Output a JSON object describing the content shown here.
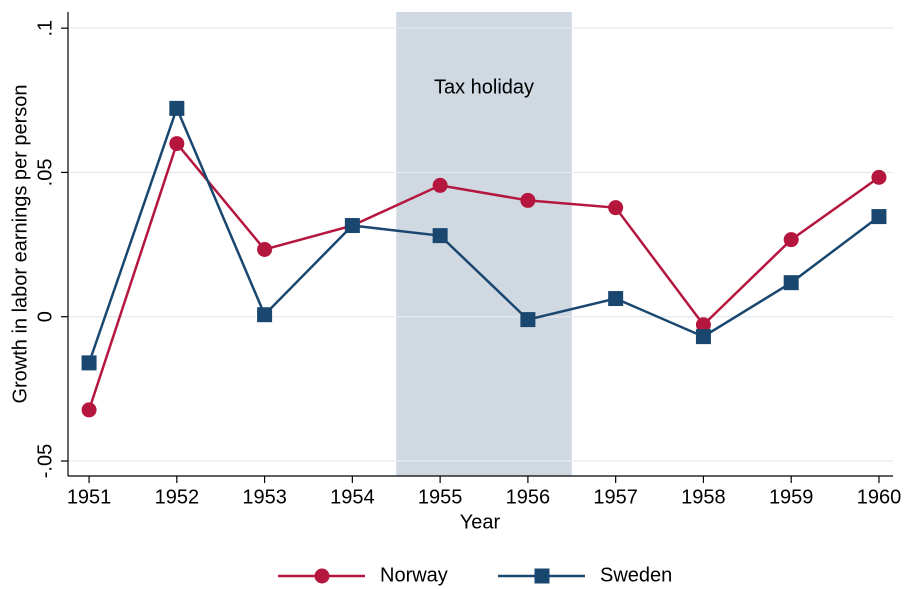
{
  "chart_data": {
    "type": "line",
    "xlabel": "Year",
    "ylabel": "Growth in labor earnings per person",
    "x": [
      1951,
      1952,
      1953,
      1954,
      1955,
      1956,
      1957,
      1958,
      1959,
      1960
    ],
    "series": [
      {
        "name": "Norway",
        "color": "#b5163e",
        "marker": "circle",
        "values": [
          -0.0323,
          0.06,
          0.0233,
          0.0316,
          0.0455,
          0.0403,
          0.0378,
          -0.0028,
          0.0267,
          0.0483
        ]
      },
      {
        "name": "Sweden",
        "color": "#1a476f",
        "marker": "square",
        "values": [
          -0.016,
          0.0722,
          0.0007,
          0.0316,
          0.0281,
          -0.001,
          0.0063,
          -0.0069,
          0.0118,
          0.0347
        ]
      }
    ],
    "shade": [
      1954.5,
      1956.5
    ],
    "shade_color": "#d0d8e2",
    "annotation": "Tax holiday",
    "xlim": [
      1950.76,
      1960.16
    ],
    "xticks": [
      1951,
      1952,
      1953,
      1954,
      1955,
      1956,
      1957,
      1958,
      1959,
      1960
    ],
    "ylim": [
      -0.0552,
      0.1056
    ],
    "yticks": [
      {
        "value": -0.05,
        "label": "-.05"
      },
      0,
      {
        "value": 0.05,
        "label": ".05"
      },
      {
        "value": 0.1,
        "label": ".1"
      }
    ],
    "grid": true,
    "legend": "bottom"
  }
}
